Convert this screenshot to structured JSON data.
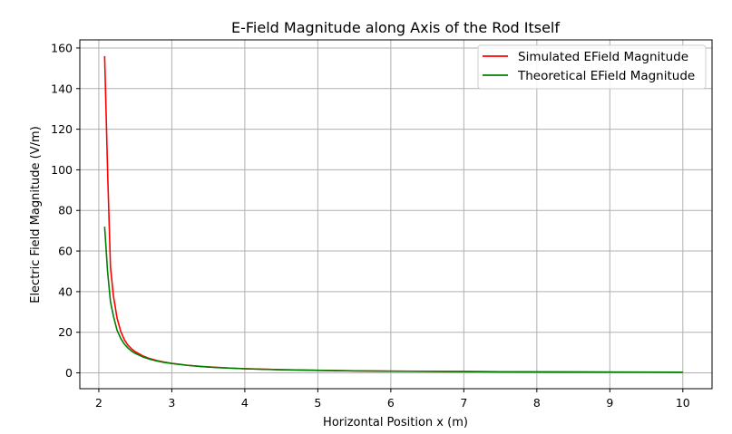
{
  "chart_data": {
    "type": "line",
    "title": "E-Field Magnitude along Axis of the Rod Itself",
    "xlabel": "Horizontal Position x (m)",
    "ylabel": "Electric Field Magnitude (V/m)",
    "xlim": [
      1.74,
      10.4
    ],
    "ylim": [
      -7.8,
      164
    ],
    "x_ticks": [
      2,
      3,
      4,
      5,
      6,
      7,
      8,
      9,
      10
    ],
    "y_ticks": [
      0,
      20,
      40,
      60,
      80,
      100,
      120,
      140,
      160
    ],
    "grid": true,
    "legend_position": "top-right",
    "series": [
      {
        "name": "Simulated EField Magnitude",
        "color": "#ff0000",
        "x": [
          2.08,
          2.12,
          2.16,
          2.2,
          2.25,
          2.3,
          2.35,
          2.4,
          2.45,
          2.5,
          2.6,
          2.7,
          2.8,
          2.9,
          3.0,
          3.2,
          3.4,
          3.6,
          3.8,
          4.0,
          4.5,
          5.0,
          5.5,
          6.0,
          6.5,
          7.0,
          7.5,
          8.0,
          8.5,
          9.0,
          9.5,
          10.0
        ],
        "y": [
          156.0,
          100.0,
          52.0,
          38.0,
          27.0,
          20.5,
          16.3,
          13.6,
          11.8,
          10.4,
          8.4,
          7.0,
          6.0,
          5.3,
          4.7,
          3.8,
          3.15,
          2.7,
          2.35,
          2.05,
          1.55,
          1.25,
          1.0,
          0.85,
          0.75,
          0.65,
          0.56,
          0.5,
          0.44,
          0.4,
          0.36,
          0.33
        ]
      },
      {
        "name": "Theoretical EField Magnitude",
        "color": "#008000",
        "x": [
          2.08,
          2.12,
          2.16,
          2.2,
          2.25,
          2.3,
          2.35,
          2.4,
          2.45,
          2.5,
          2.6,
          2.7,
          2.8,
          2.9,
          3.0,
          3.2,
          3.4,
          3.6,
          3.8,
          4.0,
          4.5,
          5.0,
          5.5,
          6.0,
          6.5,
          7.0,
          7.5,
          8.0,
          8.5,
          9.0,
          9.5,
          10.0
        ],
        "y": [
          72.0,
          50.0,
          35.0,
          28.0,
          21.0,
          17.0,
          14.2,
          12.2,
          10.7,
          9.6,
          7.9,
          6.7,
          5.8,
          5.1,
          4.6,
          3.75,
          3.1,
          2.65,
          2.3,
          2.02,
          1.52,
          1.22,
          0.98,
          0.84,
          0.73,
          0.63,
          0.55,
          0.49,
          0.43,
          0.39,
          0.35,
          0.32
        ]
      }
    ]
  }
}
